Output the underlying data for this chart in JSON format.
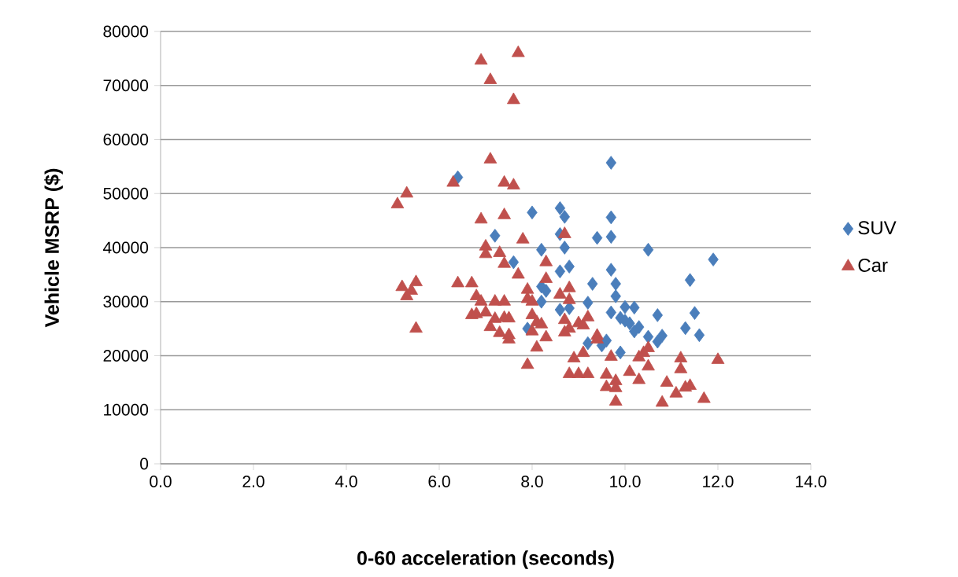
{
  "chart_data": {
    "type": "scatter",
    "xlabel": "0-60 acceleration (seconds)",
    "ylabel": "Vehicle MSRP ($)",
    "xlim": [
      0,
      14
    ],
    "ylim": [
      0,
      80000
    ],
    "xticks": [
      {
        "value": 0,
        "label": "0.0"
      },
      {
        "value": 2,
        "label": "2.0"
      },
      {
        "value": 4,
        "label": "4.0"
      },
      {
        "value": 6,
        "label": "6.0"
      },
      {
        "value": 8,
        "label": "8.0"
      },
      {
        "value": 10,
        "label": "10.0"
      },
      {
        "value": 12,
        "label": "12.0"
      },
      {
        "value": 14,
        "label": "14.0"
      }
    ],
    "yticks": [
      0,
      10000,
      20000,
      30000,
      40000,
      50000,
      60000,
      70000,
      80000
    ],
    "grid": "y",
    "legend": "right",
    "series": [
      {
        "name": "SUV",
        "color": "#4a7ebb",
        "marker": "diamond",
        "x": [
          6.4,
          9.7,
          8.0,
          8.6,
          8.7,
          9.7,
          7.2,
          8.6,
          9.4,
          9.7,
          8.2,
          8.7,
          10.5,
          11.9,
          7.6,
          8.8,
          8.6,
          9.7,
          11.4,
          9.3,
          9.8,
          8.2,
          8.3,
          9.8,
          8.2,
          8.6,
          8.8,
          9.2,
          9.7,
          10.0,
          10.2,
          10.7,
          11.5,
          9.9,
          10.0,
          10.1,
          10.3,
          11.3,
          10.2,
          10.5,
          10.8,
          11.6,
          9.6,
          9.2,
          9.5,
          10.7,
          9.9,
          7.9
        ],
        "values": [
          53000,
          55700,
          46500,
          47300,
          45700,
          45600,
          42200,
          42500,
          41800,
          42000,
          39600,
          40000,
          39600,
          37800,
          37300,
          36500,
          35600,
          35900,
          34000,
          33300,
          33300,
          32800,
          32000,
          31000,
          30000,
          28500,
          28800,
          29800,
          28000,
          29000,
          28900,
          27500,
          27900,
          27000,
          26500,
          26000,
          25300,
          25100,
          24500,
          23500,
          23700,
          23800,
          22800,
          22300,
          21900,
          22600,
          20600,
          25000
        ]
      },
      {
        "name": "Car",
        "color": "#c0504d",
        "marker": "triangle",
        "x": [
          7.7,
          6.9,
          7.1,
          7.6,
          7.1,
          6.3,
          5.3,
          5.1,
          7.4,
          7.6,
          6.9,
          7.4,
          7.8,
          8.7,
          7.0,
          7.0,
          7.3,
          7.4,
          8.3,
          7.7,
          8.3,
          5.2,
          5.3,
          5.5,
          5.4,
          6.4,
          6.7,
          6.8,
          6.9,
          7.2,
          7.4,
          7.9,
          7.9,
          8.0,
          8.6,
          8.8,
          8.8,
          5.5,
          6.7,
          6.8,
          7.0,
          7.1,
          7.2,
          7.3,
          7.4,
          7.5,
          7.5,
          7.5,
          8.0,
          8.1,
          8.2,
          8.0,
          8.3,
          8.1,
          8.7,
          8.8,
          8.7,
          9.0,
          9.1,
          9.2,
          7.9,
          8.9,
          9.1,
          8.8,
          9.0,
          9.2,
          9.4,
          9.4,
          9.6,
          9.7,
          9.6,
          9.8,
          9.8,
          9.8,
          10.1,
          10.3,
          10.4,
          10.5,
          10.5,
          10.3,
          10.8,
          10.9,
          11.1,
          11.2,
          11.2,
          11.3,
          11.4,
          11.7,
          12.0
        ],
        "values": [
          76000,
          74600,
          71000,
          67300,
          56300,
          52000,
          50000,
          48000,
          52000,
          51500,
          45200,
          46000,
          41500,
          42500,
          40200,
          38800,
          39000,
          37000,
          37300,
          35000,
          34200,
          32700,
          31000,
          33600,
          32000,
          33400,
          33400,
          31000,
          30000,
          30000,
          30000,
          32200,
          30500,
          30000,
          31300,
          32500,
          30300,
          25000,
          27500,
          27700,
          28000,
          25300,
          26800,
          24200,
          27000,
          26900,
          23000,
          23800,
          27500,
          26200,
          25800,
          24500,
          23400,
          21500,
          26600,
          25000,
          24300,
          26000,
          25600,
          27100,
          18300,
          19500,
          20500,
          16600,
          16600,
          16600,
          23700,
          23000,
          16500,
          19800,
          14200,
          15300,
          14000,
          11500,
          17000,
          19700,
          20500,
          21400,
          18000,
          15500,
          11300,
          15000,
          13000,
          19500,
          17500,
          14100,
          14400,
          12000,
          19200
        ]
      }
    ]
  }
}
